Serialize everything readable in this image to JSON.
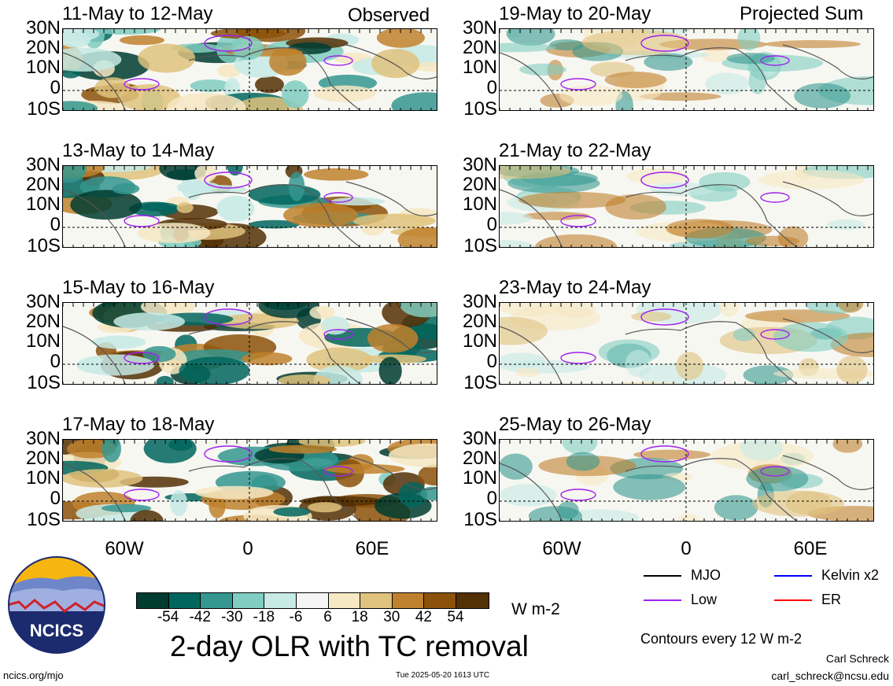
{
  "header": {
    "left_label": "Observed",
    "right_label": "Projected Sum"
  },
  "latitude_labels": [
    "30N",
    "20N",
    "10N",
    "0",
    "10S"
  ],
  "longitude_labels": [
    "60W",
    "0",
    "60E"
  ],
  "panels_left": [
    {
      "title": "11-May to 12-May"
    },
    {
      "title": "13-May to 14-May"
    },
    {
      "title": "15-May to 16-May"
    },
    {
      "title": "17-May to 18-May"
    }
  ],
  "panels_right": [
    {
      "title": "19-May to 20-May"
    },
    {
      "title": "21-May to 22-May"
    },
    {
      "title": "23-May to 24-May"
    },
    {
      "title": "25-May to 26-May"
    }
  ],
  "colorbar": {
    "colors": [
      "#003c30",
      "#01665e",
      "#35978f",
      "#80cdc1",
      "#c7eae5",
      "#f5f5f5",
      "#f6e8c3",
      "#dfc27d",
      "#bf812d",
      "#8c510a",
      "#543005"
    ],
    "labels": [
      "-54",
      "-42",
      "-30",
      "-18",
      "-6",
      "6",
      "18",
      "30",
      "42",
      "54"
    ],
    "units": "W m-2"
  },
  "legend": {
    "items": [
      {
        "label": "MJO",
        "color": "#000000"
      },
      {
        "label": "Kelvin x2",
        "color": "#0000ff"
      },
      {
        "label": "Low",
        "color": "#a020f0"
      },
      {
        "label": "ER",
        "color": "#ff0000"
      }
    ],
    "contours_note": "Contours every 12 W m-2"
  },
  "title": "2-day OLR with TC removal",
  "footer": {
    "url": "ncics.org/mjo",
    "timestamp": "Tue 2025-05-20 1613 UTC",
    "author": "Carl Schreck",
    "email": "carl_schreck@ncsu.edu"
  },
  "logo": {
    "text": "NCICS"
  }
}
